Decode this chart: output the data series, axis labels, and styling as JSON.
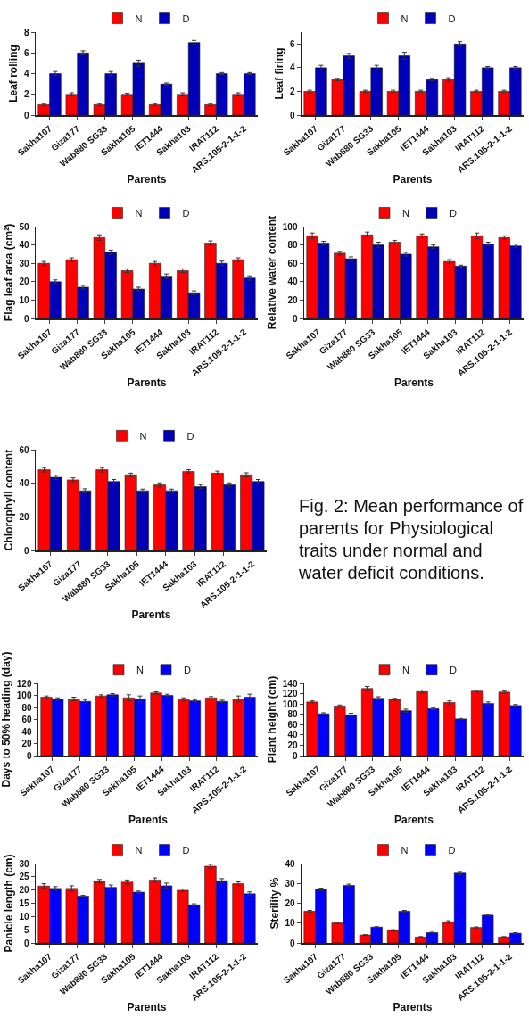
{
  "chart_data": [
    {
      "type": "bar",
      "ylabel": "Leaf rolling",
      "xlabel": "Parents",
      "categories": [
        "Sakha107",
        "Giza177",
        "Wab880 SG33",
        "Sakha105",
        "IET1444",
        "Sakha103",
        "IRAT112",
        "ARS.105-2-1-1-2"
      ],
      "ylim": [
        0,
        8
      ],
      "yticks": [
        0,
        2,
        4,
        6,
        8
      ],
      "grid": false,
      "legend": "top",
      "series": [
        {
          "name": "N",
          "color": "#ff0000",
          "values": [
            1,
            2,
            1,
            2,
            1,
            2,
            1,
            2
          ],
          "errors": [
            0.1,
            0.15,
            0.1,
            0.1,
            0.1,
            0.15,
            0.1,
            0.15
          ]
        },
        {
          "name": "D",
          "color": "#0000b8",
          "values": [
            4,
            6,
            4,
            5,
            3,
            7,
            4,
            4
          ],
          "errors": [
            0.2,
            0.2,
            0.2,
            0.3,
            0.1,
            0.2,
            0.1,
            0.1
          ]
        }
      ]
    },
    {
      "type": "bar",
      "ylabel": "Leaf firing",
      "xlabel": "Parents",
      "categories": [
        "Sakha107",
        "Giza177",
        "Wab880 SG33",
        "Sakha105",
        "IET1444",
        "Sakha103",
        "IRAT112",
        "ARS.105-2-1-1-2"
      ],
      "ylim": [
        0,
        7
      ],
      "yticks": [
        0,
        2,
        4,
        6
      ],
      "grid": false,
      "legend": "top",
      "series": [
        {
          "name": "N",
          "color": "#ff0000",
          "values": [
            2,
            3,
            2,
            2,
            2,
            3,
            2,
            2
          ],
          "errors": [
            0.1,
            0.1,
            0.1,
            0.1,
            0.1,
            0.15,
            0.1,
            0.1
          ]
        },
        {
          "name": "D",
          "color": "#0000b8",
          "values": [
            4,
            5,
            4,
            5,
            3,
            6,
            4,
            4
          ],
          "errors": [
            0.2,
            0.2,
            0.2,
            0.3,
            0.1,
            0.2,
            0.1,
            0.1
          ]
        }
      ]
    },
    {
      "type": "bar",
      "ylabel": "Flag leaf area (cm²)",
      "xlabel": "Parents",
      "categories": [
        "Sakha107",
        "Giza177",
        "Wab880 SG33",
        "Sakha105",
        "IET1444",
        "Sakha103",
        "IRAT112",
        "ARS.105-2-1-1-2"
      ],
      "ylim": [
        0,
        50
      ],
      "yticks": [
        0,
        10,
        20,
        30,
        40,
        50
      ],
      "grid": false,
      "legend": "top",
      "series": [
        {
          "name": "N",
          "color": "#ff0000",
          "values": [
            30,
            32,
            44,
            26,
            30,
            26,
            41,
            32
          ],
          "errors": [
            1,
            1,
            1.5,
            1,
            1,
            1,
            1.2,
            1
          ]
        },
        {
          "name": "D",
          "color": "#0000b8",
          "values": [
            20,
            17,
            36,
            16,
            23,
            14,
            30,
            22
          ],
          "errors": [
            1,
            1,
            1.2,
            1,
            1.2,
            1,
            1.2,
            1.2
          ]
        }
      ]
    },
    {
      "type": "bar",
      "ylabel": "Relative water content",
      "xlabel": "Parents",
      "categories": [
        "Sakha107",
        "Giza177",
        "Wab880 SG33",
        "Sakha105",
        "IET1444",
        "Sakha103",
        "IRAT112",
        "ARS.105-2-1-1-2"
      ],
      "ylim": [
        0,
        100
      ],
      "yticks": [
        0,
        20,
        40,
        60,
        80,
        100
      ],
      "grid": false,
      "legend": "top",
      "series": [
        {
          "name": "N",
          "color": "#ff0000",
          "values": [
            90,
            71,
            91,
            83,
            90,
            62,
            90,
            88
          ],
          "errors": [
            3,
            2,
            3,
            2,
            2,
            2,
            3,
            2
          ]
        },
        {
          "name": "D",
          "color": "#0000b8",
          "values": [
            82,
            65,
            80,
            70,
            78,
            57,
            81,
            79
          ],
          "errors": [
            2,
            2,
            3,
            2,
            2,
            1,
            2,
            2
          ]
        }
      ]
    },
    {
      "type": "bar",
      "ylabel": "Chlorophyll content",
      "xlabel": "Parents",
      "categories": [
        "Sakha107",
        "Giza177",
        "Wab880 SG33",
        "Sakha105",
        "IET1444",
        "Sakha103",
        "IRAT112",
        "ARS.105-2-1-1-2"
      ],
      "ylim": [
        0,
        60
      ],
      "yticks": [
        0,
        20,
        40,
        60
      ],
      "grid": false,
      "legend": "top",
      "series": [
        {
          "name": "N",
          "color": "#ff0000",
          "values": [
            48,
            42,
            48,
            45,
            39,
            47,
            46,
            45
          ],
          "errors": [
            1.3,
            1.2,
            1.3,
            1,
            1.2,
            1,
            1.2,
            1.2
          ]
        },
        {
          "name": "D",
          "color": "#0000b8",
          "values": [
            43.5,
            35.5,
            41,
            35.5,
            35.5,
            38,
            39,
            41
          ],
          "errors": [
            1.2,
            1.2,
            1.2,
            1,
            1,
            1.2,
            1.2,
            1.2
          ]
        }
      ]
    },
    {
      "type": "other",
      "title": "Fig. 2: Mean performance of parents for Physiological traits under normal and water deficit conditions."
    },
    {
      "type": "bar",
      "ylabel": "Days to 50% heading (day)",
      "xlabel": "Parents",
      "categories": [
        "Sakha107",
        "Giza177",
        "Wab880 SG33",
        "Sakha105",
        "IET1444",
        "Sakha103",
        "IRAT112",
        "ARS.105-2-1-1-2"
      ],
      "ylim": [
        0,
        120
      ],
      "yticks": [
        0,
        20,
        40,
        60,
        80,
        100,
        120
      ],
      "grid": false,
      "legend": "top",
      "series": [
        {
          "name": "N",
          "color": "#ff0000",
          "values": [
            97,
            94,
            99,
            96,
            104,
            93,
            96,
            94
          ],
          "errors": [
            2,
            3,
            2,
            5,
            2,
            3,
            2,
            5
          ]
        },
        {
          "name": "D",
          "color": "#0000ff",
          "values": [
            94,
            90,
            101,
            94,
            100,
            91,
            90,
            97
          ],
          "errors": [
            2,
            3,
            2,
            5,
            2,
            2,
            2,
            5
          ]
        }
      ]
    },
    {
      "type": "bar",
      "ylabel": "Plant height (cm)",
      "xlabel": "Parents",
      "categories": [
        "Sakha107",
        "Giza177",
        "Wab880 SG33",
        "Sakha105",
        "IET1444",
        "Sakha103",
        "IRAT112",
        "ARS.105-2-1-1-2"
      ],
      "ylim": [
        0,
        140
      ],
      "yticks": [
        0,
        20,
        40,
        60,
        80,
        100,
        120,
        140
      ],
      "grid": false,
      "legend": "top",
      "series": [
        {
          "name": "N",
          "color": "#ff0000",
          "values": [
            104,
            96,
            130,
            109,
            124,
            103,
            125,
            123
          ],
          "errors": [
            2,
            2,
            4,
            2,
            3,
            3,
            2,
            2
          ]
        },
        {
          "name": "D",
          "color": "#0000ff",
          "values": [
            81,
            79,
            111,
            87,
            91,
            71,
            101,
            97
          ],
          "errors": [
            2,
            3,
            3,
            3,
            2,
            1,
            3,
            2
          ]
        }
      ]
    },
    {
      "type": "bar",
      "ylabel": "Panicle length (cm)",
      "xlabel": "Parents",
      "categories": [
        "Sakha107",
        "Giza177",
        "Wab880 SG33",
        "Sakha105",
        "IET1444",
        "Sakha103",
        "IRAT112",
        "ARS.105-2-1-1-2"
      ],
      "ylim": [
        0,
        30
      ],
      "yticks": [
        0,
        5,
        10,
        15,
        20,
        25,
        30
      ],
      "grid": false,
      "legend": "top",
      "series": [
        {
          "name": "N",
          "color": "#ff0000",
          "values": [
            21.5,
            20.6,
            23.3,
            23,
            23.8,
            19.9,
            29,
            22.4
          ],
          "errors": [
            0.9,
            1,
            0.7,
            0.8,
            0.8,
            0.5,
            0.7,
            0.7
          ]
        },
        {
          "name": "D",
          "color": "#0000ff",
          "values": [
            20.6,
            17.7,
            21,
            19.2,
            21.6,
            14.4,
            23.5,
            18.6
          ],
          "errors": [
            0.7,
            0.3,
            0.9,
            0.4,
            1,
            0.4,
            0.8,
            0.7
          ]
        }
      ]
    },
    {
      "type": "bar",
      "ylabel": "Sterility %",
      "xlabel": "Parents",
      "categories": [
        "Sakha107",
        "Giza177",
        "Wab880 SG33",
        "Sakha105",
        "IET1444",
        "Sakha103",
        "IRAT112",
        "ARS.105-2-1-1-2"
      ],
      "ylim": [
        0,
        40
      ],
      "yticks": [
        0,
        10,
        20,
        30,
        40
      ],
      "grid": false,
      "legend": "top",
      "series": [
        {
          "name": "N",
          "color": "#ff0000",
          "values": [
            16,
            10.1,
            4,
            6.3,
            3,
            10.6,
            7.8,
            3
          ],
          "errors": [
            0.4,
            0.4,
            0.2,
            0.4,
            0.2,
            0.6,
            0.3,
            0.2
          ]
        },
        {
          "name": "D",
          "color": "#0000ff",
          "values": [
            27,
            29,
            8,
            16,
            5.2,
            35.2,
            14,
            4.9
          ],
          "errors": [
            0.6,
            0.6,
            0.2,
            0.4,
            0.2,
            0.8,
            0.3,
            0.3
          ]
        }
      ]
    }
  ]
}
